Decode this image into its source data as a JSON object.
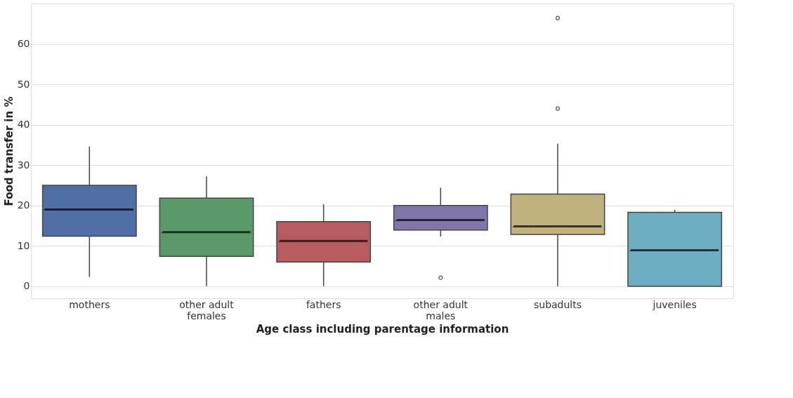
{
  "chart_data": {
    "type": "box",
    "xlabel": "Age class including parentage information",
    "ylabel": "Food transfer in %",
    "categories": [
      "mothers",
      "other adult females",
      "fathers",
      "other adult males",
      "subadults",
      "juveniles"
    ],
    "colors": [
      "#4f6fa6",
      "#5a9a68",
      "#b85c5f",
      "#8175aa",
      "#c0b27d",
      "#6daec3"
    ],
    "boxes": [
      {
        "low": 2.3,
        "q1": 12.4,
        "median": 19.0,
        "q3": 25.0,
        "high": 34.6
      },
      {
        "low": 0,
        "q1": 7.4,
        "median": 13.4,
        "q3": 21.8,
        "high": 27.2
      },
      {
        "low": 0,
        "q1": 6.0,
        "median": 11.2,
        "q3": 16.0,
        "high": 20.3
      },
      {
        "low": 12.3,
        "q1": 13.9,
        "median": 16.4,
        "q3": 20.0,
        "high": 24.4,
        "outliers": [
          2.1
        ]
      },
      {
        "low": 0,
        "q1": 12.8,
        "median": 14.8,
        "q3": 22.8,
        "high": 35.3,
        "outliers": [
          44.0,
          66.4
        ]
      },
      {
        "low": 0,
        "q1": 0,
        "median": 8.9,
        "q3": 18.3,
        "high": 18.9
      }
    ],
    "ylim": [
      -3,
      70
    ],
    "yticks": [
      0,
      10,
      20,
      30,
      40,
      50,
      60
    ],
    "grid": "y",
    "line_style": "dashed"
  }
}
